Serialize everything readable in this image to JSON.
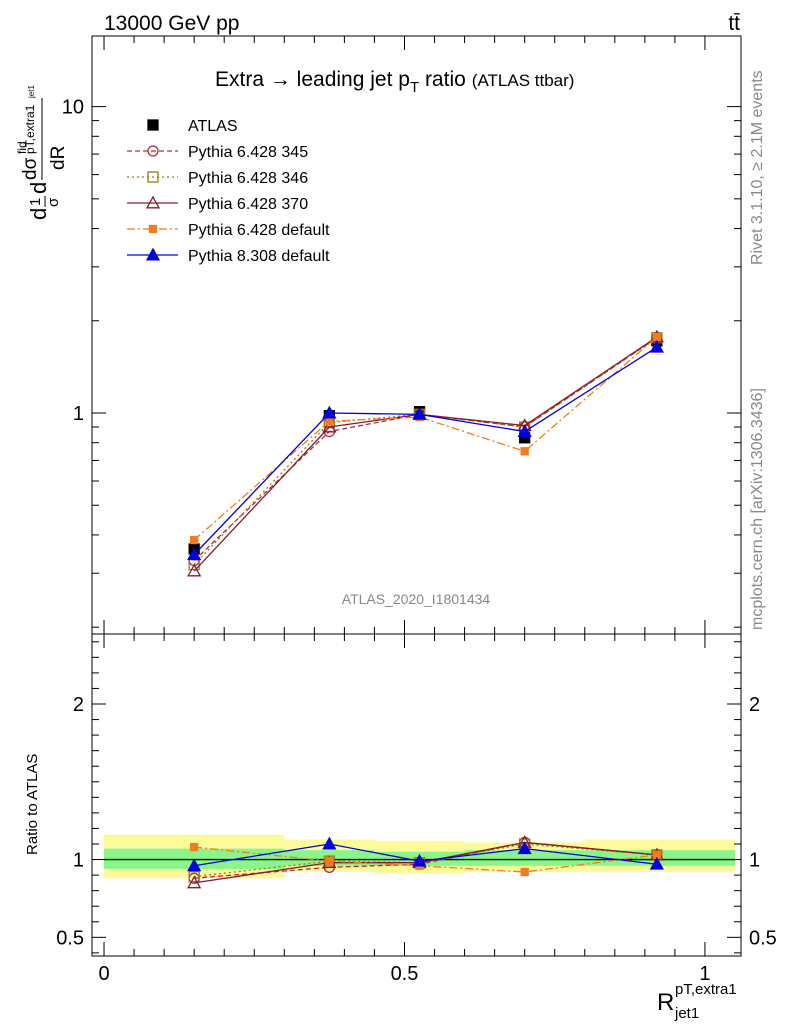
{
  "header": {
    "left": "13000 GeV pp",
    "right": "tt̄"
  },
  "title": {
    "main": "Extra → leading jet p",
    "sub": "T",
    "rest": " ratio",
    "tag": "(ATLAS ttbar)"
  },
  "side_labels": {
    "rivet": "Rivet 3.1.10, ≥ 2.1M events",
    "mcplots": "mcplots.cern.ch [arXiv:1306.3436]"
  },
  "watermark": "ATLAS_2020_I1801434",
  "ylabel_main": "d¹/σ d dσ^fid_pT,extra1 / dR_jet1",
  "ylabel_main_parts": {
    "a": "d",
    "b": "σ",
    "c": "1",
    "d": "dσ",
    "sup": "fid",
    "sub": "pT,extra1",
    "e": "dR",
    "f": "jet1"
  },
  "ylabel_ratio": "Ratio to ATLAS",
  "xlabel": {
    "main": "R",
    "sup": "pT,extra1",
    "sub": "jet1"
  },
  "colors": {
    "atlas": "#000000",
    "p345": "#b22b3a",
    "p346": "#9a7a1a",
    "p370": "#8b1a2a",
    "p6def": "#f47b20",
    "p8def": "#0000dd",
    "band_inner": "#8af58a",
    "band_outer": "#fbfb9a"
  },
  "chart_data": [
    {
      "type": "line",
      "panel": "main",
      "yscale": "log",
      "xlim": [
        -0.02,
        1.06
      ],
      "ylim": [
        0.19,
        17
      ],
      "yticks": [
        1,
        10
      ],
      "ytick_labels": [
        "1",
        "10"
      ],
      "x": [
        0.15,
        0.375,
        0.525,
        0.7,
        0.92
      ],
      "series": [
        {
          "name": "ATLAS",
          "key": "atlas",
          "values": [
            0.36,
            0.98,
            1.01,
            0.83,
            1.72
          ],
          "errors": [
            0.02,
            0.05,
            0.04,
            0.03,
            0.04
          ]
        },
        {
          "name": "Pythia 6.428 345",
          "key": "p345",
          "values": [
            0.33,
            0.87,
            0.99,
            0.9,
            1.76
          ]
        },
        {
          "name": "Pythia 6.428 346",
          "key": "p346",
          "values": [
            0.32,
            0.93,
            0.99,
            0.9,
            1.76
          ]
        },
        {
          "name": "Pythia 6.428 370",
          "key": "p370",
          "values": [
            0.305,
            0.9,
            0.99,
            0.91,
            1.77
          ]
        },
        {
          "name": "Pythia 6.428 default",
          "key": "p6def",
          "values": [
            0.385,
            0.94,
            0.97,
            0.75,
            1.77
          ]
        },
        {
          "name": "Pythia 8.308 default",
          "key": "p8def",
          "values": [
            0.345,
            1.0,
            0.99,
            0.87,
            1.64
          ]
        }
      ]
    },
    {
      "type": "line",
      "panel": "ratio",
      "xlim": [
        -0.02,
        1.06
      ],
      "ylim": [
        0.38,
        2.45
      ],
      "yticks": [
        0.5,
        1,
        2
      ],
      "ytick_labels": [
        "0.5",
        "1",
        "2"
      ],
      "xticks": [
        0,
        0.5,
        1
      ],
      "xtick_labels": [
        "0",
        "0.5",
        "1"
      ],
      "bands": [
        {
          "x0": 0.0,
          "x1": 0.3,
          "inner": [
            0.94,
            1.07
          ],
          "outer": [
            0.88,
            1.16
          ]
        },
        {
          "x0": 0.3,
          "x1": 0.45,
          "inner": [
            0.96,
            1.06
          ],
          "outer": [
            0.92,
            1.13
          ]
        },
        {
          "x0": 0.45,
          "x1": 0.6,
          "inner": [
            0.96,
            1.05
          ],
          "outer": [
            0.91,
            1.12
          ]
        },
        {
          "x0": 0.6,
          "x1": 0.8,
          "inner": [
            0.96,
            1.06
          ],
          "outer": [
            0.92,
            1.11
          ]
        },
        {
          "x0": 0.8,
          "x1": 1.05,
          "inner": [
            0.96,
            1.06
          ],
          "outer": [
            0.92,
            1.13
          ]
        }
      ],
      "x": [
        0.15,
        0.375,
        0.525,
        0.7,
        0.92
      ],
      "series": [
        {
          "name": "Pythia 6.428 345",
          "key": "p345",
          "values": [
            0.88,
            0.95,
            0.97,
            1.11,
            1.03
          ]
        },
        {
          "name": "Pythia 6.428 346",
          "key": "p346",
          "values": [
            0.89,
            0.99,
            0.98,
            1.1,
            1.03
          ]
        },
        {
          "name": "Pythia 6.428 370",
          "key": "p370",
          "values": [
            0.85,
            0.98,
            0.98,
            1.11,
            1.03
          ]
        },
        {
          "name": "Pythia 6.428 default",
          "key": "p6def",
          "values": [
            1.08,
            0.99,
            0.96,
            0.92,
            1.03
          ]
        },
        {
          "name": "Pythia 8.308 default",
          "key": "p8def",
          "values": [
            0.96,
            1.1,
            0.99,
            1.07,
            0.97
          ]
        }
      ]
    }
  ]
}
